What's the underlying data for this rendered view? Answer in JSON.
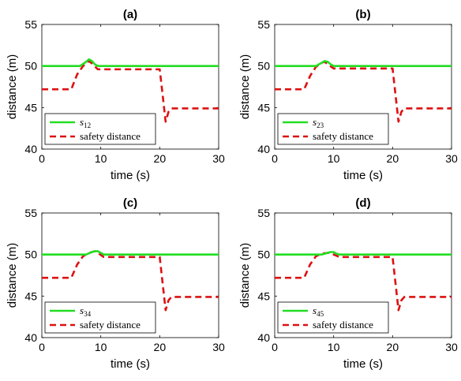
{
  "colors": {
    "spacing_series": "#22dd22",
    "safety_series": "#dd1111",
    "axes": "#000000",
    "background": "#ffffff"
  },
  "chart_data": [
    {
      "type": "line",
      "title": "(a)",
      "xlabel": "time (s)",
      "ylabel": "distance (m)",
      "xlim": [
        0,
        30
      ],
      "ylim": [
        40,
        55
      ],
      "xticks": [
        "0",
        "10",
        "20",
        "30"
      ],
      "yticks": [
        "40",
        "45",
        "50",
        "55"
      ],
      "grid": false,
      "legend_position": "bottom-left",
      "series": [
        {
          "name": "s12",
          "symbol": "s",
          "subscript": "12",
          "style": "solid",
          "x": [
            0,
            6.5,
            7.5,
            8.0,
            8.5,
            9.0,
            9.5,
            30
          ],
          "y": [
            50,
            50,
            50.5,
            50.8,
            50.6,
            50.2,
            50,
            50
          ]
        },
        {
          "name": "safety distance",
          "style": "dashed",
          "x": [
            0,
            5,
            6,
            7,
            8,
            8.5,
            9.5,
            20,
            20.5,
            21,
            21.5,
            22,
            30
          ],
          "y": [
            47.2,
            47.2,
            49.0,
            50.0,
            50.6,
            50.3,
            49.6,
            49.6,
            46.5,
            43.3,
            44.5,
            44.9,
            44.9
          ]
        }
      ]
    },
    {
      "type": "line",
      "title": "(b)",
      "xlabel": "time (s)",
      "ylabel": "distance (m)",
      "xlim": [
        0,
        30
      ],
      "ylim": [
        40,
        55
      ],
      "xticks": [
        "0",
        "10",
        "20",
        "30"
      ],
      "yticks": [
        "40",
        "45",
        "50",
        "55"
      ],
      "grid": false,
      "legend_position": "bottom-left",
      "series": [
        {
          "name": "s23",
          "symbol": "s",
          "subscript": "23",
          "style": "solid",
          "x": [
            0,
            7.0,
            8.0,
            8.5,
            9.0,
            9.5,
            10.0,
            30
          ],
          "y": [
            50,
            50,
            50.4,
            50.6,
            50.5,
            50.2,
            50,
            50
          ]
        },
        {
          "name": "safety distance",
          "style": "dashed",
          "x": [
            0,
            5,
            6,
            7,
            8,
            8.5,
            9.0,
            10.0,
            20,
            20.5,
            21,
            21.5,
            22,
            30
          ],
          "y": [
            47.2,
            47.2,
            48.8,
            49.9,
            50.4,
            50.5,
            50.2,
            49.7,
            49.7,
            46.5,
            43.3,
            44.5,
            44.9,
            44.9
          ]
        }
      ]
    },
    {
      "type": "line",
      "title": "(c)",
      "xlabel": "time (s)",
      "ylabel": "distance (m)",
      "xlim": [
        0,
        30
      ],
      "ylim": [
        40,
        55
      ],
      "xticks": [
        "0",
        "10",
        "20",
        "30"
      ],
      "yticks": [
        "40",
        "45",
        "50",
        "55"
      ],
      "grid": false,
      "legend_position": "bottom-left",
      "series": [
        {
          "name": "s34",
          "symbol": "s",
          "subscript": "34",
          "style": "solid",
          "x": [
            0,
            7.5,
            8.5,
            9.0,
            9.5,
            10.0,
            10.5,
            30
          ],
          "y": [
            50,
            50,
            50.3,
            50.4,
            50.4,
            50.2,
            50,
            50
          ]
        },
        {
          "name": "safety distance",
          "style": "dashed",
          "x": [
            0,
            5,
            6,
            7,
            8,
            9,
            9.5,
            10.5,
            20,
            20.5,
            21,
            21.5,
            22,
            30
          ],
          "y": [
            47.2,
            47.2,
            48.8,
            49.8,
            50.2,
            50.4,
            50.2,
            49.7,
            49.7,
            46.5,
            43.3,
            44.5,
            44.9,
            44.9
          ]
        }
      ]
    },
    {
      "type": "line",
      "title": "(d)",
      "xlabel": "time (s)",
      "ylabel": "distance (m)",
      "xlim": [
        0,
        30
      ],
      "ylim": [
        40,
        55
      ],
      "xticks": [
        "0",
        "10",
        "20",
        "30"
      ],
      "yticks": [
        "40",
        "45",
        "50",
        "55"
      ],
      "grid": false,
      "legend_position": "bottom-left",
      "series": [
        {
          "name": "s45",
          "symbol": "s",
          "subscript": "45",
          "style": "solid",
          "x": [
            0,
            8.0,
            9.0,
            9.5,
            10.0,
            10.5,
            11.0,
            30
          ],
          "y": [
            50,
            50,
            50.2,
            50.3,
            50.3,
            50.1,
            50,
            50
          ]
        },
        {
          "name": "safety distance",
          "style": "dashed",
          "x": [
            0,
            5,
            6,
            7,
            8,
            9,
            10,
            11,
            20,
            20.5,
            21,
            21.5,
            22,
            30
          ],
          "y": [
            47.2,
            47.2,
            48.8,
            49.8,
            50.1,
            50.2,
            50.0,
            49.7,
            49.7,
            46.5,
            43.3,
            44.5,
            44.9,
            44.9
          ]
        }
      ]
    }
  ]
}
